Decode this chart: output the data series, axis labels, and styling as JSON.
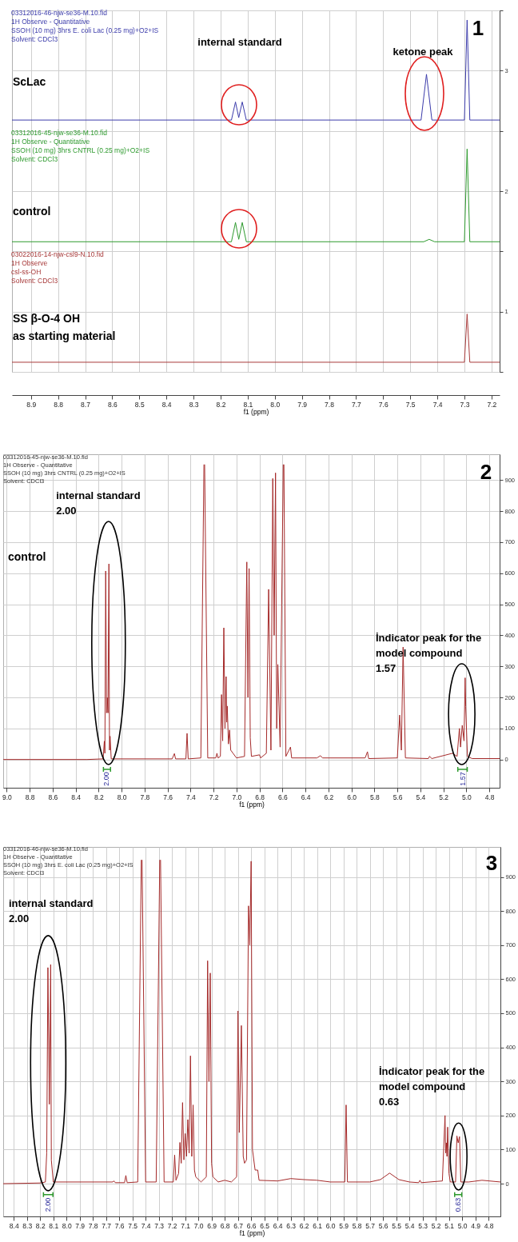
{
  "chart_data": [
    {
      "type": "line",
      "title": "1",
      "xlabel": "f1 (ppm)",
      "xlim": [
        8.97,
        7.17
      ],
      "ylim": [
        0.5,
        3.5
      ],
      "grid": true,
      "xticks": [
        8.9,
        8.8,
        8.7,
        8.6,
        8.5,
        8.4,
        8.3,
        8.2,
        8.1,
        {
          "value": 8,
          "label": "8.0"
        },
        7.9,
        7.8,
        7.7,
        7.6,
        7.5,
        7.4,
        7.3,
        7.2
      ],
      "yticks": [
        {
          "value": 0.5,
          "label": null
        },
        1,
        {
          "value": 1.5,
          "label": null
        },
        2,
        {
          "value": 2.5,
          "label": null
        },
        3,
        {
          "value": 3.5,
          "label": null
        }
      ],
      "annotations": [
        "03312016-46-njw-se36-M.10.fid\n1H Observe - Quantitative\nSSOH (10 mg) 3hrs E. coli Lac (0.25 mg)+O2+IS\nSolvent: CDCl3",
        "03312016-45-njw-se36-M.10.fid\n1H Observe - Quantitative\nSSOH (10 mg) 3hrs CNTRL (0.25 mg)+O2+IS\nSolvent: CDCl3",
        "03022016-14-njw-csl9-N.10.fid\n1H Observe\ncsl-ss-OH\nSolvent: CDCl3",
        "internal standard",
        "ketone peak"
      ],
      "series": [
        {
          "name": "ScLac",
          "color": "#3c3cab",
          "x": [
            8.97,
            8.16,
            8.145,
            8.133,
            8.12,
            8.105,
            7.6,
            7.46,
            7.44,
            7.42,
            7.3,
            7.29,
            7.28,
            7.17
          ],
          "values": [
            2.59,
            2.59,
            2.74,
            2.61,
            2.74,
            2.59,
            2.59,
            2.59,
            2.97,
            2.59,
            2.59,
            3.42,
            2.59,
            2.59
          ]
        },
        {
          "name": "control",
          "color": "#2e9a2e",
          "x": [
            8.97,
            8.16,
            8.145,
            8.133,
            8.12,
            8.105,
            7.45,
            7.43,
            7.41,
            7.3,
            7.29,
            7.28,
            7.17
          ],
          "values": [
            1.58,
            1.58,
            1.74,
            1.6,
            1.74,
            1.58,
            1.58,
            1.6,
            1.58,
            1.58,
            2.35,
            1.58,
            1.58
          ]
        },
        {
          "name": "SS β-O-4 OH\nas starting material",
          "color": "#a83a3a",
          "x": [
            8.97,
            7.3,
            7.29,
            7.28,
            7.17
          ],
          "values": [
            0.58,
            0.58,
            0.98,
            0.58,
            0.58
          ]
        }
      ]
    },
    {
      "type": "line",
      "title": "2",
      "xlabel": "f1 (ppm)",
      "xlim": [
        9.03,
        4.71
      ],
      "ylim": [
        -91,
        983
      ],
      "grid": true,
      "xticks": [
        {
          "value": 9,
          "label": "9.0"
        },
        8.8,
        8.6,
        8.4,
        8.2,
        {
          "value": 8,
          "label": "8.0"
        },
        7.8,
        7.6,
        7.4,
        7.2,
        {
          "value": 7,
          "label": "7.0"
        },
        6.8,
        6.6,
        6.4,
        6.2,
        {
          "value": 6,
          "label": "6.0"
        },
        5.8,
        5.6,
        5.4,
        5.2,
        {
          "value": 5,
          "label": "5.0"
        },
        4.8
      ],
      "yticks": [
        0,
        100,
        200,
        300,
        400,
        500,
        600,
        700,
        800,
        900
      ],
      "annotations": [
        "03312016-45-njw-se36-M.10.fid\n1H Observe - Quantitative\nSSOH (10 mg) 3hrs CNTRL (0.25 mg)+O2+IS\nSolvent: CDCl3",
        "internal standard\n2.00",
        "İndicator peak for the\nmodel compound\n1.57",
        "2.00",
        "1.57"
      ],
      "series": [
        {
          "name": "control",
          "color": "#a52a2a",
          "x": [
            9.03,
            8.3,
            8.16,
            8.15,
            8.145,
            8.138,
            8.13,
            8.124,
            8.118,
            8.11,
            8.105,
            8.1,
            8.09,
            7.56,
            7.54,
            7.53,
            7.44,
            7.43,
            7.42,
            7.31,
            7.283,
            7.28,
            7.277,
            7.25,
            7.18,
            7.17,
            7.16,
            7.14,
            7.13,
            7.12,
            7.11,
            7.1,
            7.09,
            7.085,
            7.08,
            7.07,
            7.06,
            7.05,
            7.03,
            7,
            6.93,
            6.91,
            6.9,
            6.89,
            6.88,
            6.87,
            6.8,
            6.79,
            6.74,
            6.72,
            6.7,
            6.684,
            6.672,
            6.66,
            6.65,
            6.64,
            6.62,
            6.593,
            6.59,
            6.587,
            6.57,
            6.53,
            6.52,
            6.3,
            6.27,
            6.25,
            5.88,
            5.86,
            5.85,
            5.6,
            5.58,
            5.565,
            5.55,
            5.53,
            5.33,
            5.32,
            5.3,
            5.12,
            5.08,
            5.06,
            5.05,
            5.035,
            5.02,
            5.01,
            5.005,
            4.99,
            4.95,
            4.71
          ],
          "values": [
            0,
            0,
            2,
            59,
            20,
            607,
            150,
            199,
            150,
            630,
            30,
            75,
            2,
            2,
            19,
            2,
            2,
            84,
            2,
            5,
            950,
            null,
            950,
            5,
            5,
            20,
            5,
            10,
            209,
            60,
            424,
            100,
            267,
            120,
            172,
            50,
            95,
            30,
            20,
            5,
            10,
            636,
            200,
            615,
            70,
            10,
            15,
            5,
            20,
            548,
            30,
            905,
            400,
            923,
            100,
            306,
            40,
            950,
            null,
            950,
            10,
            40,
            5,
            5,
            12,
            5,
            5,
            25,
            3,
            5,
            143,
            30,
            362,
            5,
            3,
            10,
            3,
            20,
            10,
            100,
            40,
            110,
            60,
            263,
            170,
            10,
            3,
            3
          ]
        }
      ]
    },
    {
      "type": "line",
      "title": "3",
      "xlabel": "f1 (ppm)",
      "xlim": [
        8.48,
        4.71
      ],
      "ylim": [
        -96,
        988
      ],
      "grid": true,
      "xticks": [
        8.4,
        8.3,
        8.2,
        8.1,
        {
          "value": 8,
          "label": "8.0"
        },
        7.9,
        7.8,
        7.7,
        7.6,
        7.5,
        7.4,
        7.3,
        7.2,
        7.1,
        {
          "value": 7,
          "label": "7.0"
        },
        6.9,
        6.8,
        6.7,
        6.6,
        6.5,
        6.4,
        6.3,
        6.2,
        6.1,
        {
          "value": 6,
          "label": "6.0"
        },
        5.9,
        5.8,
        5.7,
        5.6,
        5.5,
        5.4,
        5.3,
        5.2,
        5.1,
        {
          "value": 5,
          "label": "5.0"
        },
        4.9,
        4.8
      ],
      "yticks": [
        0,
        100,
        200,
        300,
        400,
        500,
        600,
        700,
        800,
        900
      ],
      "annotations": [
        "03312016-46-njw-se36-M.10.fid\n1H Observe - Quantitative\nSSOH (10 mg) 3hrs E. coli Lac (0.25 mg)+O2+IS\nSolvent: CDCl3",
        "internal standard\n2.00",
        "İndicator peak for the\nmodel compound\n0.63",
        "2.00",
        "0.63"
      ],
      "series": [
        {
          "color": "#a52a2a",
          "x": [
            8.48,
            8.2,
            8.16,
            8.15,
            8.141,
            8.13,
            8.12,
            8.115,
            8.1,
            7.65,
            7.64,
            7.63,
            7.56,
            7.55,
            7.54,
            7.46,
            7.433,
            7.43,
            7.427,
            7.4,
            7.32,
            7.293,
            7.29,
            7.287,
            7.26,
            7.19,
            7.18,
            7.17,
            7.15,
            7.14,
            7.13,
            7.12,
            7.11,
            7.1,
            7.09,
            7.08,
            7.07,
            7.06,
            7.05,
            7.04,
            7.03,
            7.02,
            6.98,
            6.94,
            6.93,
            6.92,
            6.91,
            6.9,
            6.89,
            6.85,
            6.8,
            6.75,
            6.71,
            6.7,
            6.69,
            6.674,
            6.66,
            6.65,
            6.635,
            6.62,
            6.61,
            6.6,
            6.59,
            6.57,
            6.55,
            6.54,
            6.4,
            6.3,
            6.2,
            6.1,
            6,
            5.89,
            5.88,
            5.87,
            5.7,
            5.62,
            5.55,
            5.48,
            5.4,
            5.33,
            5.32,
            5.31,
            5.15,
            5.13,
            5.125,
            5.12,
            5.115,
            5.11,
            5.1,
            5.09,
            5.05,
            5.04,
            5.03,
            5.02,
            5.01,
            4.95,
            4.85,
            4.71
          ],
          "values": [
            0,
            2,
            5,
            90,
            634,
            233,
            643,
            69,
            5,
            5,
            8,
            3,
            3,
            24,
            3,
            5,
            950,
            null,
            950,
            5,
            5,
            950,
            null,
            950,
            5,
            5,
            84,
            10,
            30,
            121,
            60,
            238,
            70,
            147,
            80,
            188,
            90,
            375,
            80,
            231,
            40,
            20,
            5,
            20,
            654,
            300,
            618,
            60,
            20,
            5,
            10,
            5,
            20,
            507,
            150,
            464,
            80,
            60,
            70,
            815,
            700,
            946,
            100,
            40,
            40,
            10,
            8,
            15,
            12,
            10,
            5,
            5,
            231,
            5,
            5,
            12,
            31,
            12,
            5,
            3,
            10,
            3,
            8,
            200,
            90,
            120,
            80,
            166,
            30,
            5,
            5,
            140,
            120,
            138,
            5,
            5,
            10,
            5
          ]
        }
      ]
    }
  ]
}
